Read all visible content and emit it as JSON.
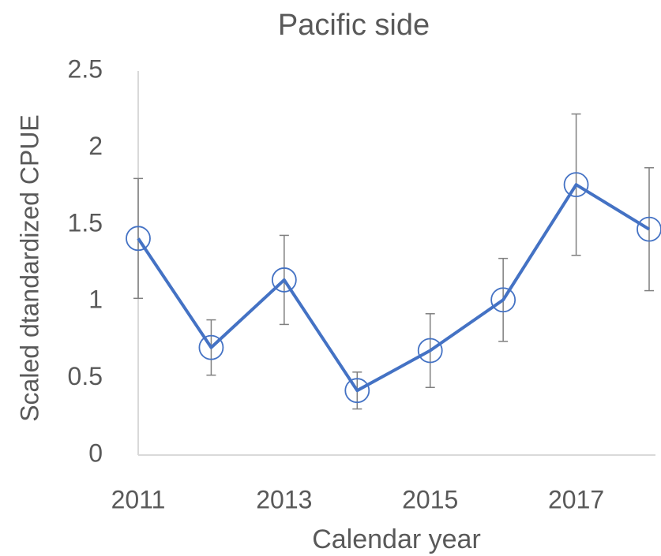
{
  "chart_data": {
    "type": "line",
    "title": "Pacific side",
    "xlabel": "Calendar year",
    "ylabel": "Scaled dtandardized CPUE",
    "x": [
      2011,
      2012,
      2013,
      2014,
      2015,
      2016,
      2017,
      2018
    ],
    "series": [
      {
        "color": "#4472c4",
        "values": [
          1.41,
          0.7,
          1.14,
          0.42,
          0.68,
          1.01,
          1.76,
          1.47
        ],
        "errors": [
          0.39,
          0.18,
          0.29,
          0.12,
          0.24,
          0.27,
          0.46,
          0.4
        ]
      }
    ],
    "xlim": [
      2011,
      2018
    ],
    "xticks": [
      2011,
      2013,
      2015,
      2017
    ],
    "ylim": [
      0,
      2.5
    ],
    "yticks": [
      0,
      0.5,
      1,
      1.5,
      2,
      2.5
    ],
    "grid": false
  }
}
